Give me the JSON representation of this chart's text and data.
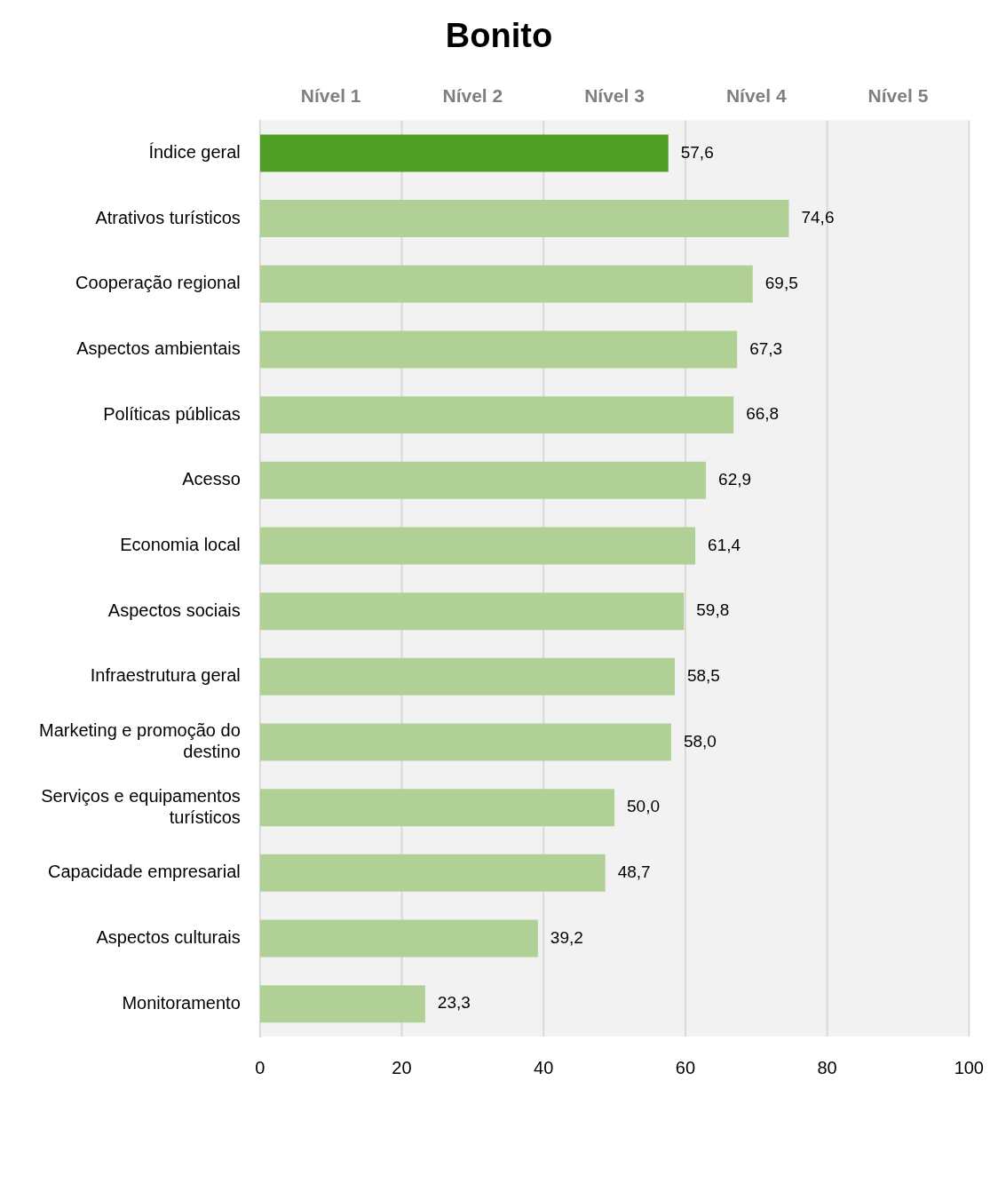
{
  "chart_data": {
    "type": "bar",
    "orientation": "horizontal",
    "title": "Bonito",
    "categories": [
      "Índice geral",
      "Atrativos turísticos",
      "Cooperação regional",
      "Aspectos ambientais",
      "Políticas públicas",
      "Acesso",
      "Economia local",
      "Aspectos sociais",
      "Infraestrutura geral",
      "Marketing e promoção do destino",
      "Serviços e equipamentos turísticos",
      "Capacidade empresarial",
      "Aspectos culturais",
      "Monitoramento"
    ],
    "values": [
      57.6,
      74.6,
      69.5,
      67.3,
      66.8,
      62.9,
      61.4,
      59.8,
      58.5,
      58.0,
      50.0,
      48.7,
      39.2,
      23.3
    ],
    "value_labels": [
      "57,6",
      "74,6",
      "69,5",
      "67,3",
      "66,8",
      "62,9",
      "61,4",
      "59,8",
      "58,5",
      "58,0",
      "50,0",
      "48,7",
      "39,2",
      "23,3"
    ],
    "colors": [
      "#4f9f26",
      "#b0d095",
      "#b0d095",
      "#b0d095",
      "#b0d095",
      "#b0d095",
      "#b0d095",
      "#b0d095",
      "#b0d095",
      "#b0d095",
      "#b0d095",
      "#b0d095",
      "#b0d095",
      "#b0d095"
    ],
    "xlim": [
      0,
      100
    ],
    "xticks": [
      0,
      20,
      40,
      60,
      80,
      100
    ],
    "grid": "x",
    "legend": false,
    "bands": [
      {
        "axis": "x",
        "from": 0,
        "to": 20,
        "label": "Nível 1",
        "color": "#f2f2f2"
      },
      {
        "axis": "x",
        "from": 20,
        "to": 40,
        "label": "Nível 2",
        "color": "#f2f2f2"
      },
      {
        "axis": "x",
        "from": 40,
        "to": 60,
        "label": "Nível 3",
        "color": "#f2f2f2"
      },
      {
        "axis": "x",
        "from": 60,
        "to": 80,
        "label": "Nível 4",
        "color": "#f2f2f2"
      },
      {
        "axis": "x",
        "from": 80,
        "to": 100,
        "label": "Nível 5",
        "color": "#f2f2f2"
      }
    ]
  }
}
